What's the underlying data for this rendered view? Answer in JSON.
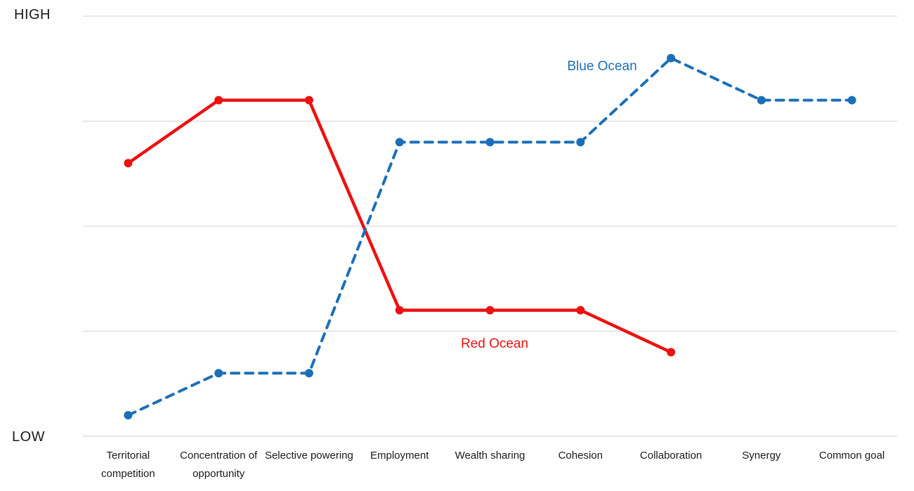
{
  "chart_data": {
    "type": "line",
    "title": "",
    "categories": [
      "Territorial competition",
      "Concentration of opportunity",
      "Selective powering",
      "Employment",
      "Wealth sharing",
      "Cohesion",
      "Collaboration",
      "Synergy",
      "Common goal"
    ],
    "series": [
      {
        "name": "Red Ocean",
        "color": "#ed1111",
        "line_style": "solid",
        "values": [
          6.5,
          8,
          8,
          3,
          3,
          3,
          2,
          null,
          null
        ]
      },
      {
        "name": "Blue Ocean",
        "color": "#1b6fb8",
        "line_style": "dashed",
        "values": [
          0.5,
          1.5,
          1.5,
          7,
          7,
          7,
          9,
          8,
          8
        ]
      }
    ],
    "xlabel": "",
    "ylabel": "",
    "ylim": [
      0,
      10
    ],
    "y_axis_high_label": "HIGH",
    "y_axis_low_label": "LOW",
    "gridlines": 5,
    "gridline_color": "#d9d9d9",
    "legend_position": "inline-annotations"
  }
}
